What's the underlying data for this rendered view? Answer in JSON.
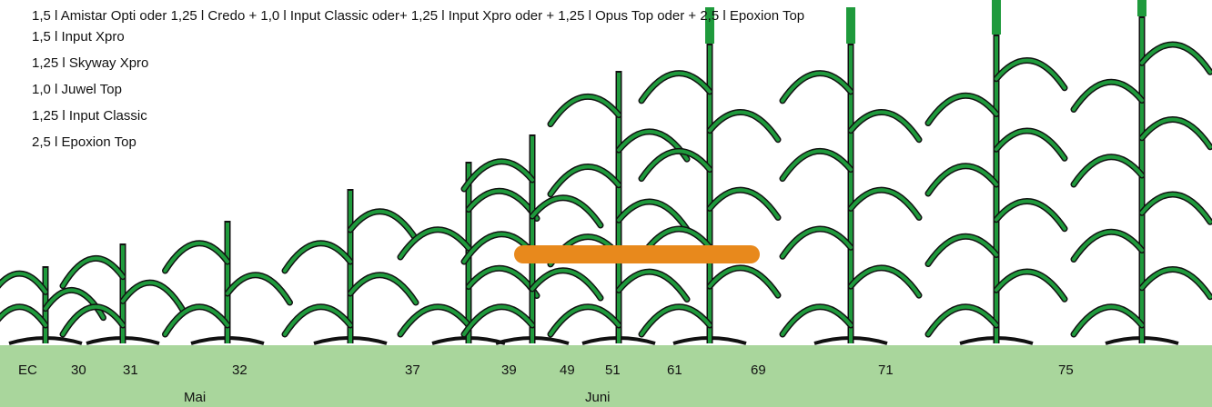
{
  "treatments": [
    "1,5 l Amistar Opti oder 1,25 l Credo + 1,0 l Input Classic oder+ 1,25 l Input Xpro oder + 1,25 l Opus Top oder + 2,5 l Epoxion Top",
    "1,5 l Input Xpro",
    "1,25 l Skyway Xpro",
    "1,0 l Juwel Top",
    "1,25 l Input Classic",
    "2,5 l Epoxion Top"
  ],
  "stages": [
    "EC",
    "30",
    "31",
    "32",
    "37",
    "39",
    "49",
    "51",
    "61",
    "69",
    "71",
    "75"
  ],
  "months": [
    "Mai",
    "Juni"
  ]
}
